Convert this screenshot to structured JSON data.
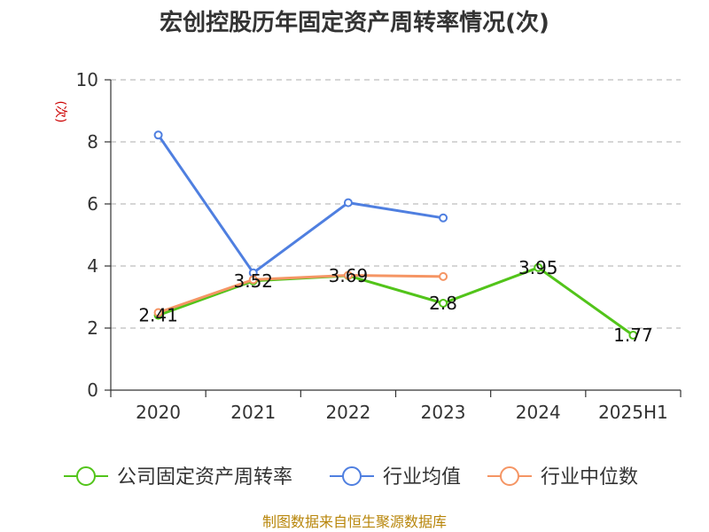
{
  "chart_data": {
    "type": "line",
    "title": "宏创控股历年固定资产周转率情况(次)",
    "ylabel": "(次)",
    "xlabel": "",
    "categories": [
      "2020",
      "2021",
      "2022",
      "2023",
      "2024",
      "2025H1"
    ],
    "ylim": [
      0,
      10
    ],
    "yticks": [
      "0",
      "2",
      "4",
      "6",
      "8",
      "10"
    ],
    "grid": true,
    "legend_position": "bottom",
    "series": [
      {
        "name": "公司固定资产周转率",
        "color": "#52c41a",
        "values": [
          2.41,
          3.52,
          3.69,
          2.8,
          3.95,
          1.77
        ],
        "labels": [
          "2.41",
          "3.52",
          "3.69",
          "2.8",
          "3.95",
          "1.77"
        ]
      },
      {
        "name": "行业均值",
        "color": "#4f7fe0",
        "values": [
          8.22,
          3.78,
          6.04,
          5.55,
          null,
          null
        ]
      },
      {
        "name": "行业中位数",
        "color": "#f59564",
        "values": [
          2.5,
          3.56,
          3.7,
          3.66,
          null,
          null
        ]
      }
    ],
    "source": "制图数据来自恒生聚源数据库"
  }
}
